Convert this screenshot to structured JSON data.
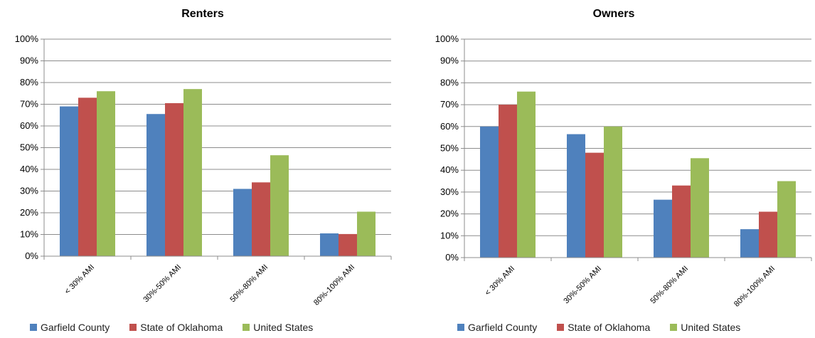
{
  "chart_data": [
    {
      "type": "bar",
      "title": "Renters",
      "categories": [
        "< 30% AMI",
        "30%-50% AMI",
        "50%-80% AMI",
        "80%-100% AMI"
      ],
      "series": [
        {
          "name": "Garfield County",
          "values": [
            69,
            65.5,
            31,
            10.5
          ]
        },
        {
          "name": "State of Oklahoma",
          "values": [
            73,
            70.5,
            34,
            10.2
          ]
        },
        {
          "name": "United States",
          "values": [
            76,
            77,
            46.5,
            20.5
          ]
        }
      ],
      "ylim": [
        0,
        100
      ],
      "yticks": [
        "0%",
        "10%",
        "20%",
        "30%",
        "40%",
        "50%",
        "60%",
        "70%",
        "80%",
        "90%",
        "100%"
      ],
      "grid": true,
      "legend_position": "bottom"
    },
    {
      "type": "bar",
      "title": "Owners",
      "categories": [
        "< 30% AMI",
        "30%-50% AMI",
        "50%-80% AMI",
        "80%-100% AMI"
      ],
      "series": [
        {
          "name": "Garfield County",
          "values": [
            60,
            56.5,
            26.5,
            13
          ]
        },
        {
          "name": "State of Oklahoma",
          "values": [
            70,
            48,
            33,
            21
          ]
        },
        {
          "name": "United States",
          "values": [
            76,
            60,
            45.5,
            35
          ]
        }
      ],
      "ylim": [
        0,
        100
      ],
      "yticks": [
        "0%",
        "10%",
        "20%",
        "30%",
        "40%",
        "50%",
        "60%",
        "70%",
        "80%",
        "90%",
        "100%"
      ],
      "grid": true,
      "legend_position": "bottom"
    }
  ],
  "colors": {
    "Garfield County": "#4f81bd",
    "State of Oklahoma": "#c0504d",
    "United States": "#9bbb59"
  }
}
